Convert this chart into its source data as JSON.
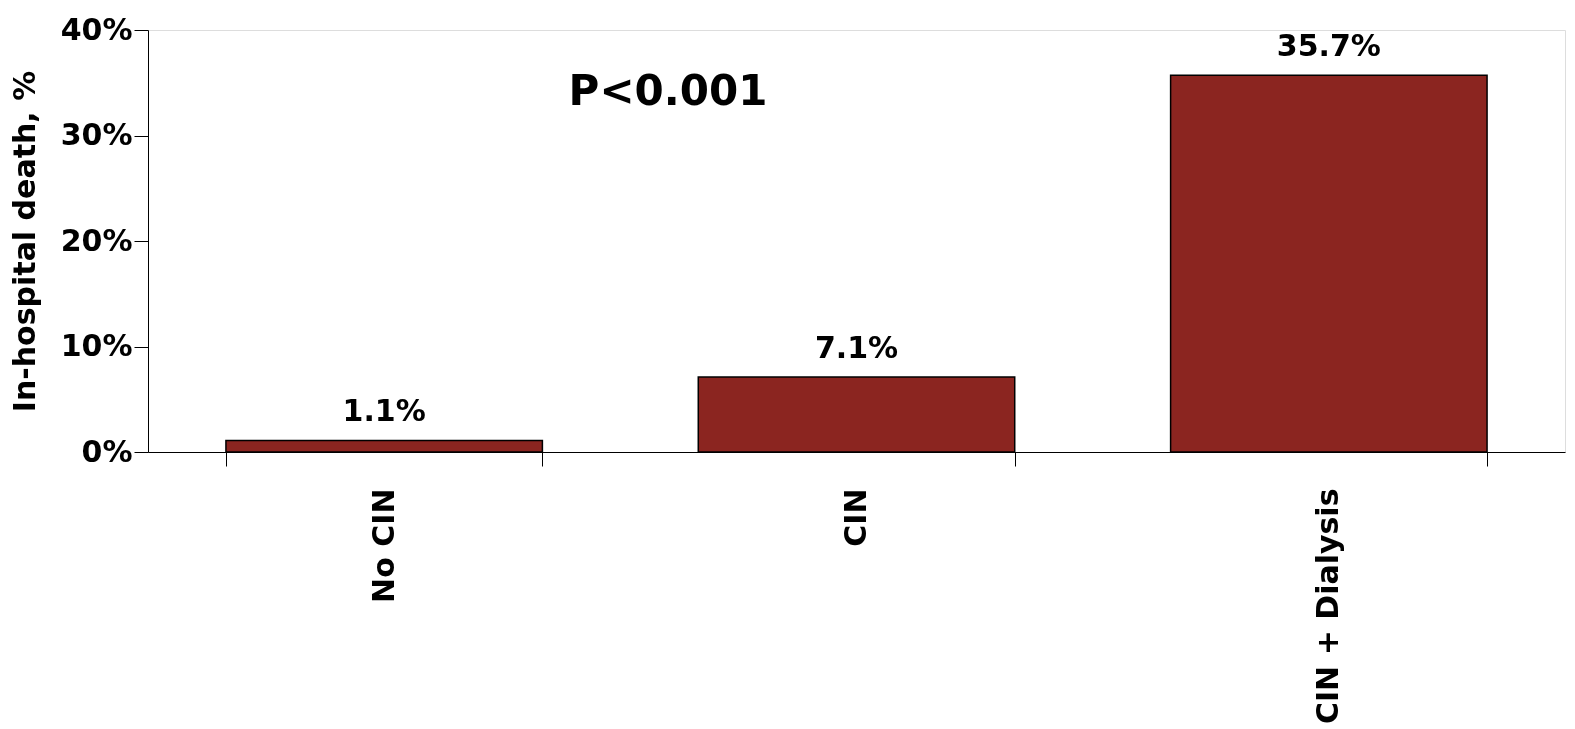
{
  "chart_data": {
    "type": "bar",
    "ylabel": "In-hospital death, %",
    "categories": [
      "No CIN",
      "CIN",
      "CIN + Dialysis"
    ],
    "values": [
      1.1,
      7.1,
      35.7
    ],
    "value_labels": [
      "1.1%",
      "7.1%",
      "35.7%"
    ],
    "color": "#8b2520",
    "ylim": [
      0,
      40
    ],
    "yticks": [
      {
        "value": 0,
        "label": "0%"
      },
      {
        "value": 10,
        "label": "10%"
      },
      {
        "value": 20,
        "label": "20%"
      },
      {
        "value": 30,
        "label": "30%"
      },
      {
        "value": 40,
        "label": "40%"
      }
    ],
    "annotations": [
      "P<0.001"
    ]
  }
}
